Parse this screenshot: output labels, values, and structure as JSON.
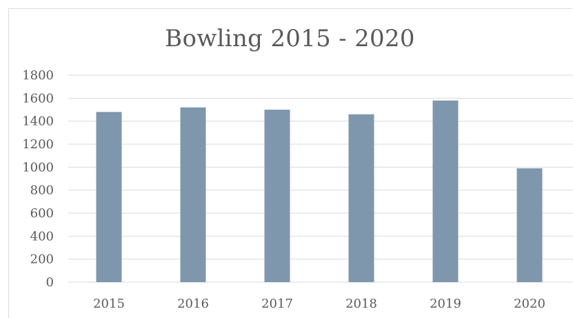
{
  "chart_data": {
    "type": "bar",
    "title": "Bowling 2015 - 2020",
    "xlabel": "",
    "ylabel": "",
    "categories": [
      "2015",
      "2016",
      "2017",
      "2018",
      "2019",
      "2020"
    ],
    "values": [
      1480,
      1520,
      1500,
      1460,
      1580,
      990
    ],
    "ylim": [
      0,
      1800
    ],
    "yticks": [
      "0",
      "200",
      "400",
      "600",
      "800",
      "1000",
      "1200",
      "1400",
      "1600",
      "1800"
    ],
    "grid": true,
    "legend": "none",
    "colors": {
      "bar": "#7f97ad",
      "grid": "#d9d9d9",
      "text": "#595959"
    }
  }
}
